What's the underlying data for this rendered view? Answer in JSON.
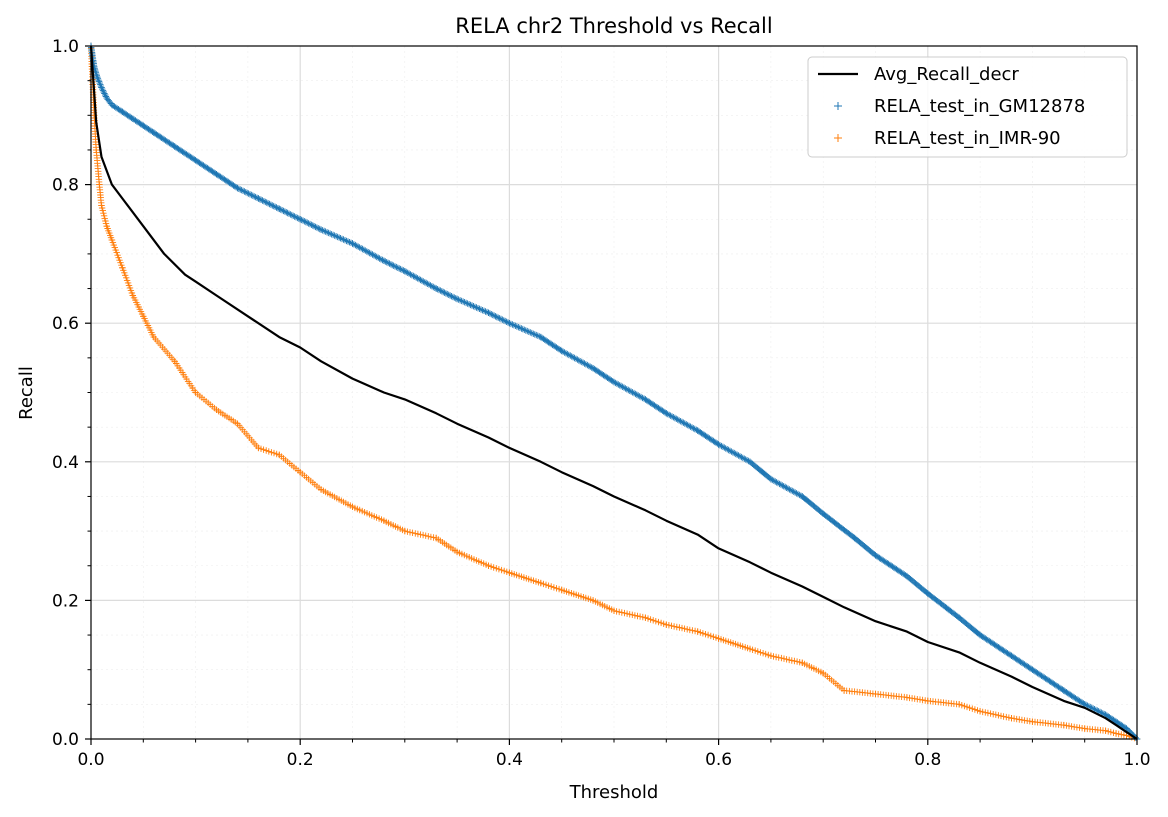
{
  "chart_data": {
    "type": "line",
    "title": "RELA chr2 Threshold vs Recall",
    "xlabel": "Threshold",
    "ylabel": "Recall",
    "xlim": [
      0.0,
      1.0
    ],
    "ylim": [
      0.0,
      1.0
    ],
    "xticks": [
      "0.0",
      "0.2",
      "0.4",
      "0.6",
      "0.8",
      "1.0"
    ],
    "yticks": [
      "0.0",
      "0.2",
      "0.4",
      "0.6",
      "0.8",
      "1.0"
    ],
    "grid": true,
    "minor_grid": true,
    "legend_position": "top-right",
    "series": [
      {
        "name": "Avg_Recall_decr",
        "style": "line",
        "color": "#000000",
        "x": [
          0.0,
          0.005,
          0.01,
          0.02,
          0.03,
          0.05,
          0.07,
          0.09,
          0.1,
          0.12,
          0.15,
          0.18,
          0.2,
          0.22,
          0.25,
          0.28,
          0.3,
          0.33,
          0.35,
          0.38,
          0.4,
          0.43,
          0.45,
          0.48,
          0.5,
          0.53,
          0.55,
          0.58,
          0.6,
          0.63,
          0.65,
          0.68,
          0.7,
          0.72,
          0.75,
          0.78,
          0.8,
          0.83,
          0.85,
          0.88,
          0.9,
          0.93,
          0.95,
          0.97,
          0.98,
          0.99,
          1.0
        ],
        "y": [
          1.0,
          0.89,
          0.84,
          0.8,
          0.78,
          0.74,
          0.7,
          0.67,
          0.66,
          0.64,
          0.61,
          0.58,
          0.565,
          0.545,
          0.52,
          0.5,
          0.49,
          0.47,
          0.455,
          0.435,
          0.42,
          0.4,
          0.385,
          0.365,
          0.35,
          0.33,
          0.315,
          0.295,
          0.275,
          0.255,
          0.24,
          0.22,
          0.205,
          0.19,
          0.17,
          0.155,
          0.14,
          0.125,
          0.11,
          0.09,
          0.075,
          0.055,
          0.045,
          0.03,
          0.02,
          0.01,
          0.0
        ]
      },
      {
        "name": "RELA_test_in_GM12878",
        "style": "marker",
        "marker": "+",
        "color": "#1f77b4",
        "x": [
          0.0,
          0.003,
          0.006,
          0.01,
          0.015,
          0.02,
          0.03,
          0.04,
          0.05,
          0.06,
          0.08,
          0.1,
          0.12,
          0.14,
          0.16,
          0.18,
          0.2,
          0.22,
          0.25,
          0.28,
          0.3,
          0.33,
          0.35,
          0.38,
          0.4,
          0.43,
          0.45,
          0.48,
          0.5,
          0.53,
          0.55,
          0.58,
          0.6,
          0.63,
          0.65,
          0.68,
          0.7,
          0.73,
          0.75,
          0.78,
          0.8,
          0.83,
          0.85,
          0.88,
          0.9,
          0.93,
          0.95,
          0.97,
          0.98,
          0.99,
          1.0
        ],
        "y": [
          1.0,
          0.97,
          0.955,
          0.94,
          0.925,
          0.915,
          0.905,
          0.895,
          0.885,
          0.875,
          0.855,
          0.835,
          0.815,
          0.795,
          0.78,
          0.765,
          0.75,
          0.735,
          0.715,
          0.69,
          0.675,
          0.65,
          0.635,
          0.615,
          0.6,
          0.58,
          0.56,
          0.535,
          0.515,
          0.49,
          0.47,
          0.445,
          0.425,
          0.4,
          0.375,
          0.35,
          0.325,
          0.29,
          0.265,
          0.235,
          0.21,
          0.175,
          0.15,
          0.12,
          0.1,
          0.07,
          0.05,
          0.035,
          0.025,
          0.015,
          0.0
        ]
      },
      {
        "name": "RELA_test_in_IMR-90",
        "style": "marker",
        "marker": "+",
        "color": "#ff7f0e",
        "x": [
          0.0,
          0.003,
          0.005,
          0.008,
          0.01,
          0.015,
          0.02,
          0.03,
          0.04,
          0.05,
          0.06,
          0.08,
          0.1,
          0.12,
          0.14,
          0.16,
          0.18,
          0.2,
          0.22,
          0.25,
          0.28,
          0.3,
          0.33,
          0.35,
          0.38,
          0.4,
          0.43,
          0.45,
          0.48,
          0.5,
          0.53,
          0.55,
          0.58,
          0.6,
          0.63,
          0.65,
          0.68,
          0.7,
          0.72,
          0.75,
          0.78,
          0.8,
          0.83,
          0.85,
          0.88,
          0.9,
          0.93,
          0.95,
          0.97,
          0.98,
          0.99,
          1.0
        ],
        "y": [
          1.0,
          0.9,
          0.85,
          0.8,
          0.77,
          0.74,
          0.72,
          0.68,
          0.64,
          0.61,
          0.58,
          0.545,
          0.5,
          0.475,
          0.455,
          0.42,
          0.41,
          0.385,
          0.36,
          0.335,
          0.315,
          0.3,
          0.29,
          0.27,
          0.25,
          0.24,
          0.225,
          0.215,
          0.2,
          0.185,
          0.175,
          0.165,
          0.155,
          0.145,
          0.13,
          0.12,
          0.11,
          0.095,
          0.07,
          0.065,
          0.06,
          0.055,
          0.05,
          0.04,
          0.03,
          0.025,
          0.02,
          0.015,
          0.012,
          0.008,
          0.005,
          0.0
        ]
      }
    ]
  }
}
